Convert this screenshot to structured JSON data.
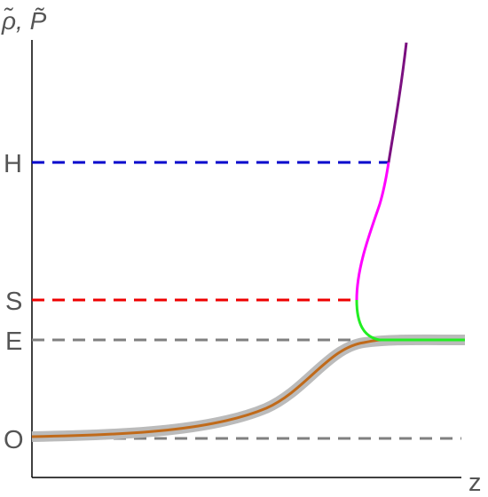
{
  "y_axis_label": "ρ̃, P̃",
  "x_axis_label": "z",
  "levels": [
    {
      "key": "H",
      "label": "H",
      "color": "#0000cc"
    },
    {
      "key": "S",
      "label": "S",
      "color": "#ee0000"
    },
    {
      "key": "E",
      "label": "E",
      "color": "#808080"
    },
    {
      "key": "O",
      "label": "O",
      "color": "#808080"
    }
  ],
  "curves": [
    {
      "key": "gray-band",
      "color": "#bbbbbb"
    },
    {
      "key": "orange-curve",
      "color": "#c06a1a"
    },
    {
      "key": "green-curve",
      "color": "#22ee22"
    },
    {
      "key": "magenta-curve",
      "color": "#ff00ff"
    },
    {
      "key": "purple-curve",
      "color": "#7b1080"
    }
  ]
}
